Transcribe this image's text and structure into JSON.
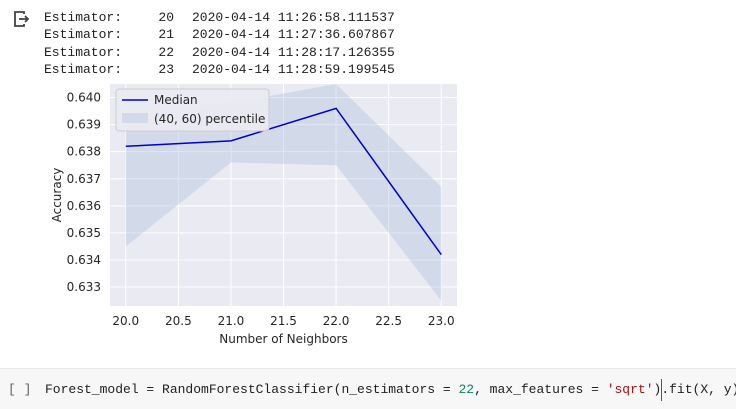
{
  "output": {
    "icon": "output-redirect-icon",
    "log_lines": [
      {
        "label": "Estimator:",
        "number": "20",
        "timestamp": "2020-04-14 11:26:58.111537"
      },
      {
        "label": "Estimator:",
        "number": "21",
        "timestamp": "2020-04-14 11:27:36.607867"
      },
      {
        "label": "Estimator:",
        "number": "22",
        "timestamp": "2020-04-14 11:28:17.126355"
      },
      {
        "label": "Estimator:",
        "number": "23",
        "timestamp": "2020-04-14 11:28:59.199545"
      }
    ]
  },
  "chart_data": {
    "type": "line",
    "title": "",
    "xlabel": "Number of Neighbors",
    "ylabel": "Accuracy",
    "x": [
      20.0,
      21.0,
      22.0,
      23.0
    ],
    "xlim": [
      19.85,
      23.15
    ],
    "ylim": [
      0.6323,
      0.6405
    ],
    "xticks": [
      20.0,
      20.5,
      21.0,
      21.5,
      22.0,
      22.5,
      23.0
    ],
    "xtick_labels": [
      "20.0",
      "20.5",
      "21.0",
      "21.5",
      "22.0",
      "22.5",
      "23.0"
    ],
    "yticks": [
      0.633,
      0.634,
      0.635,
      0.636,
      0.637,
      0.638,
      0.639,
      0.64
    ],
    "ytick_labels": [
      "0.633",
      "0.634",
      "0.635",
      "0.636",
      "0.637",
      "0.638",
      "0.639",
      "0.640"
    ],
    "grid": true,
    "style": "seaborn-darkgrid",
    "legend": {
      "placement": "top-left",
      "entries": [
        "Median",
        "(40, 60) percentile"
      ]
    },
    "series": [
      {
        "name": "Median",
        "values": [
          0.6382,
          0.6384,
          0.6396,
          0.6342
        ],
        "color": "#0000cc"
      }
    ],
    "band": {
      "name": "(40, 60) percentile",
      "lower": [
        0.6345,
        0.6376,
        0.6375,
        0.6325
      ],
      "upper": [
        0.6394,
        0.6398,
        0.6405,
        0.6367
      ],
      "color": "#b0c4de"
    }
  },
  "code_cell": {
    "run_bracket": "[ ]",
    "code_tokens": [
      {
        "text": "Forest_model = RandomForestClassifier(n_estimators = ",
        "kind": "plain"
      },
      {
        "text": "22",
        "kind": "num"
      },
      {
        "text": ", max_features = ",
        "kind": "plain"
      },
      {
        "text": "'sqrt'",
        "kind": "str"
      },
      {
        "text": ").fit(X, y)",
        "kind": "plain"
      }
    ]
  }
}
